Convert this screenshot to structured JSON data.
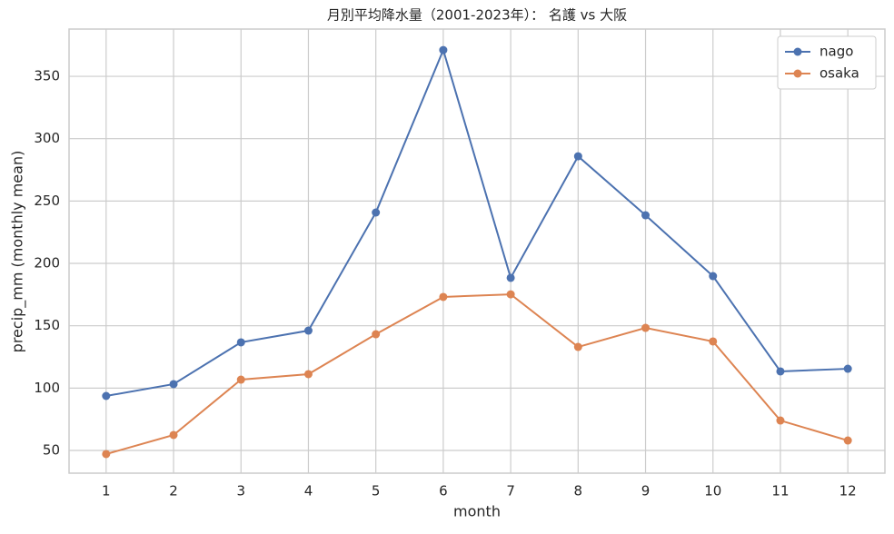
{
  "chart_data": {
    "type": "line",
    "title": "月別平均降水量（2001-2023年）： 名護 vs 大阪",
    "x_label": "month",
    "y_label": "precip_mm (monthly mean)",
    "x": [
      1,
      2,
      3,
      4,
      5,
      6,
      7,
      8,
      9,
      10,
      11,
      12
    ],
    "series": [
      {
        "name": "nago",
        "color": "#4c72b0",
        "values": [
          93.7,
          103.2,
          136.7,
          146.1,
          240.8,
          371.1,
          188.4,
          285.9,
          238.6,
          189.8,
          113.4,
          115.5
        ]
      },
      {
        "name": "osaka",
        "color": "#dd8452",
        "values": [
          47.1,
          62.4,
          106.8,
          111.2,
          143.2,
          173.1,
          175.2,
          133.0,
          148.3,
          137.4,
          74.0,
          58.0
        ]
      }
    ],
    "xlim": [
      0.45,
      12.55
    ],
    "xticks": [
      1,
      2,
      3,
      4,
      5,
      6,
      7,
      8,
      9,
      10,
      11,
      12
    ],
    "ylim": [
      31.8,
      387.9
    ],
    "yticks": [
      50,
      100,
      150,
      200,
      250,
      300,
      350
    ],
    "grid": true,
    "legend": "upper right"
  }
}
